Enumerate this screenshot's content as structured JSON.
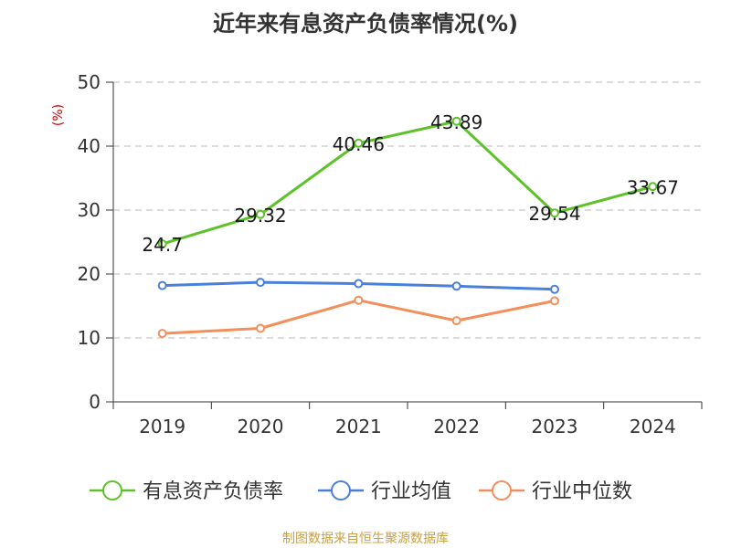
{
  "chart_data": {
    "type": "line",
    "title": "近年来有息资产负债率情况(%)",
    "ylabel": "(%)",
    "xlabel": "",
    "categories": [
      "2019",
      "2020",
      "2021",
      "2022",
      "2023",
      "2024"
    ],
    "ylim": [
      0,
      50
    ],
    "yticks": [
      0,
      10,
      20,
      30,
      40,
      50
    ],
    "grid": true,
    "legend_position": "bottom",
    "series": [
      {
        "name": "有息资产负债率",
        "color": "#5dc12a",
        "values": [
          24.7,
          29.32,
          40.46,
          43.89,
          29.54,
          33.67
        ],
        "data_labels": [
          "24.7",
          "29.32",
          "40.46",
          "43.89",
          "29.54",
          "33.67"
        ]
      },
      {
        "name": "行业均值",
        "color": "#4a7fdb",
        "values": [
          18.2,
          18.7,
          18.5,
          18.1,
          17.6,
          null
        ],
        "data_labels": []
      },
      {
        "name": "行业中位数",
        "color": "#f28f5c",
        "values": [
          10.7,
          11.5,
          15.9,
          12.7,
          15.8,
          null
        ],
        "data_labels": []
      }
    ]
  },
  "source": "制图数据来自恒生聚源数据库"
}
